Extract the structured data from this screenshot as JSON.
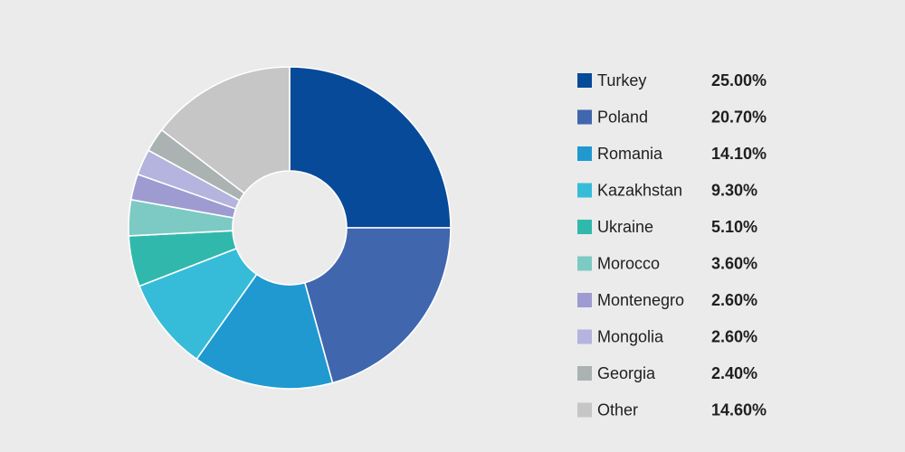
{
  "chart_data": {
    "type": "pie",
    "style": "donut",
    "legend_position": "right",
    "categories": [
      "Turkey",
      "Poland",
      "Romania",
      "Kazakhstan",
      "Ukraine",
      "Morocco",
      "Montenegro",
      "Mongolia",
      "Georgia",
      "Other"
    ],
    "values": [
      25.0,
      20.7,
      14.1,
      9.3,
      5.1,
      3.6,
      2.6,
      2.6,
      2.4,
      14.6
    ],
    "value_labels": [
      "25.00%",
      "20.70%",
      "14.10%",
      "9.30%",
      "5.10%",
      "3.60%",
      "2.60%",
      "2.60%",
      "2.40%",
      "14.60%"
    ],
    "unit": "%",
    "colors": [
      "#064a99",
      "#4066ae",
      "#1f99d0",
      "#36bcd9",
      "#31b8ad",
      "#7ccac3",
      "#9d9bd0",
      "#b4b4de",
      "#aab3b1",
      "#c6c6c6"
    ]
  }
}
